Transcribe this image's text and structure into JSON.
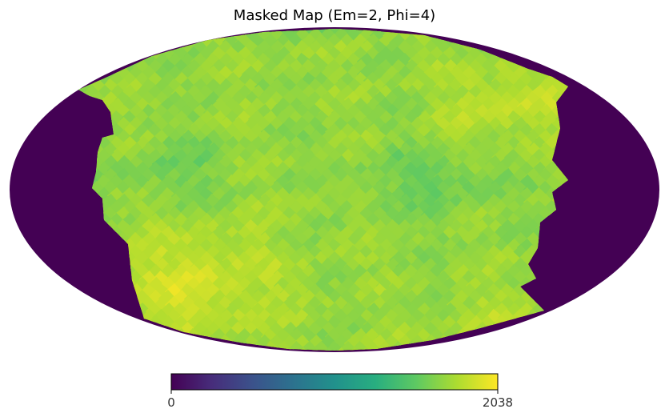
{
  "chart_data": {
    "type": "heatmap",
    "title": "Masked Map (Em=2, Phi=4)",
    "projection": "mollweide",
    "colormap": "viridis",
    "colorbar": {
      "min": 0,
      "max": 2038,
      "tick_labels": [
        "0",
        "2038"
      ]
    },
    "mask_value": 0,
    "mask_color": "#440154",
    "unmasked_value_range_estimate": [
      1300,
      2038
    ]
  }
}
